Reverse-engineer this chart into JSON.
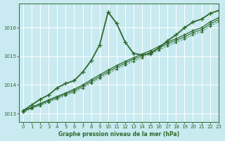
{
  "title": "Graphe pression niveau de la mer (hPa)",
  "bg_color": "#c8eaf0",
  "grid_color": "#a8d8e0",
  "line_color": "#2d6a2d",
  "xlim": [
    -0.5,
    23
  ],
  "ylim": [
    1012.7,
    1016.85
  ],
  "yticks": [
    1013,
    1014,
    1015,
    1016
  ],
  "xticks": [
    0,
    1,
    2,
    3,
    4,
    5,
    6,
    7,
    8,
    9,
    10,
    11,
    12,
    13,
    14,
    15,
    16,
    17,
    18,
    19,
    20,
    21,
    22,
    23
  ],
  "series": [
    {
      "x": [
        0,
        1,
        2,
        3,
        4,
        5,
        6,
        7,
        8,
        9,
        10,
        11,
        12,
        13,
        14,
        15,
        16,
        17,
        18,
        19,
        20,
        21,
        22,
        23
      ],
      "y": [
        1013.1,
        1013.3,
        1013.5,
        1013.65,
        1013.9,
        1014.05,
        1014.15,
        1014.45,
        1014.85,
        1015.4,
        1016.55,
        1016.15,
        1015.5,
        1015.1,
        1015.05,
        1015.1,
        1015.3,
        1015.55,
        1015.75,
        1016.0,
        1016.2,
        1016.3,
        1016.5,
        1016.6
      ],
      "linestyle": "-",
      "marker": "+",
      "linewidth": 1.3,
      "markersize": 4
    },
    {
      "x": [
        0,
        1,
        2,
        3,
        4,
        5,
        6,
        7,
        8,
        9,
        10,
        11,
        12,
        13,
        14,
        15,
        16,
        17,
        18,
        19,
        20,
        21,
        22,
        23
      ],
      "y": [
        1013.1,
        1013.22,
        1013.35,
        1013.48,
        1013.6,
        1013.72,
        1013.85,
        1014.0,
        1014.18,
        1014.35,
        1014.52,
        1014.68,
        1014.82,
        1014.95,
        1015.08,
        1015.2,
        1015.35,
        1015.5,
        1015.62,
        1015.75,
        1015.9,
        1016.0,
        1016.2,
        1016.35
      ],
      "linestyle": "-",
      "marker": "+",
      "linewidth": 0.9,
      "markersize": 3
    },
    {
      "x": [
        0,
        1,
        2,
        3,
        4,
        5,
        6,
        7,
        8,
        9,
        10,
        11,
        12,
        13,
        14,
        15,
        16,
        17,
        18,
        19,
        20,
        21,
        22,
        23
      ],
      "y": [
        1013.08,
        1013.2,
        1013.32,
        1013.44,
        1013.56,
        1013.68,
        1013.8,
        1013.95,
        1014.12,
        1014.29,
        1014.46,
        1014.62,
        1014.76,
        1014.9,
        1015.02,
        1015.14,
        1015.29,
        1015.44,
        1015.56,
        1015.68,
        1015.83,
        1015.93,
        1016.13,
        1016.28
      ],
      "linestyle": "-",
      "marker": "+",
      "linewidth": 0.8,
      "markersize": 3
    },
    {
      "x": [
        0,
        1,
        2,
        3,
        4,
        5,
        6,
        7,
        8,
        9,
        10,
        11,
        12,
        13,
        14,
        15,
        16,
        17,
        18,
        19,
        20,
        21,
        22,
        23
      ],
      "y": [
        1013.05,
        1013.17,
        1013.28,
        1013.4,
        1013.52,
        1013.63,
        1013.75,
        1013.9,
        1014.07,
        1014.23,
        1014.4,
        1014.56,
        1014.7,
        1014.83,
        1014.96,
        1015.08,
        1015.22,
        1015.37,
        1015.49,
        1015.61,
        1015.76,
        1015.86,
        1016.06,
        1016.21
      ],
      "linestyle": ":",
      "marker": "+",
      "linewidth": 1.0,
      "markersize": 3
    }
  ]
}
